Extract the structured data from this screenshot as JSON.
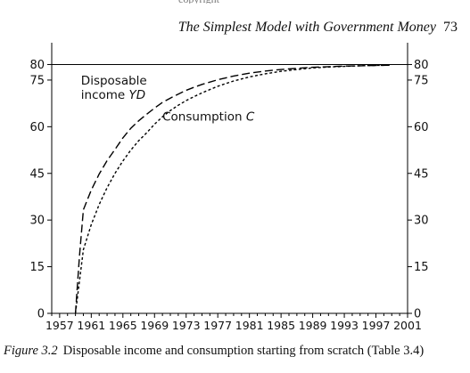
{
  "header": {
    "running_title": "The Simplest Model with Government Money",
    "page_number": "73",
    "clipped_text": "copyright"
  },
  "figure": {
    "label": "Figure 3.2",
    "caption": "Disposable income and consumption starting from scratch (Table 3.4)"
  },
  "chart_data": {
    "type": "line",
    "title": "",
    "xlabel": "",
    "ylabel": "",
    "xlim": [
      1956,
      2001
    ],
    "ylim": [
      0,
      87
    ],
    "x_ticks": [
      1957,
      1961,
      1965,
      1969,
      1973,
      1977,
      1981,
      1985,
      1989,
      1993,
      1997,
      2001
    ],
    "y_ticks_left": [
      0,
      15,
      30,
      45,
      60,
      75,
      80
    ],
    "y_ticks_right": [
      0,
      15,
      30,
      45,
      60,
      75,
      80
    ],
    "reference_line": {
      "y": 80
    },
    "series": [
      {
        "name": "Disposable income YD",
        "style": "long-dash",
        "label_lines": [
          "Disposable",
          "income YD"
        ],
        "label_anchor": {
          "x": 1959.7,
          "y": 73.5
        },
        "x": [
          1959,
          1959.5,
          1960,
          1961,
          1962,
          1963,
          1964,
          1965,
          1966,
          1967,
          1968,
          1969,
          1970,
          1971,
          1972,
          1973,
          1974,
          1975,
          1977,
          1979,
          1981,
          1983,
          1985,
          1987,
          1989,
          1991,
          1993,
          1995,
          1997,
          1999
        ],
        "y": [
          0,
          18,
          33.3,
          39.6,
          44.8,
          49.1,
          52.7,
          56.4,
          59.5,
          61.9,
          64.0,
          66.0,
          67.8,
          69.2,
          70.5,
          71.7,
          72.7,
          73.6,
          75.1,
          76.3,
          77.2,
          77.9,
          78.4,
          78.8,
          79.1,
          79.3,
          79.5,
          79.6,
          79.7,
          79.8
        ]
      },
      {
        "name": "Consumption C",
        "style": "short-dash",
        "label_lines": [
          "Consumption C"
        ],
        "label_anchor": {
          "x": 1970.0,
          "y": 62.0
        },
        "x": [
          1959,
          1960,
          1961,
          1962,
          1963,
          1964,
          1965,
          1966,
          1967,
          1968,
          1969,
          1970,
          1971,
          1972,
          1973,
          1974,
          1975,
          1977,
          1979,
          1981,
          1983,
          1985,
          1987,
          1989,
          1991,
          1993,
          1995,
          1997,
          1999
        ],
        "y": [
          0,
          20.5,
          28.5,
          35.0,
          40.4,
          45.0,
          49.0,
          52.5,
          55.5,
          58.0,
          60.8,
          63.2,
          65.2,
          66.9,
          68.4,
          69.7,
          70.9,
          73.0,
          74.7,
          76.0,
          77.0,
          77.8,
          78.4,
          78.9,
          79.2,
          79.4,
          79.6,
          79.7,
          79.8
        ]
      }
    ]
  }
}
